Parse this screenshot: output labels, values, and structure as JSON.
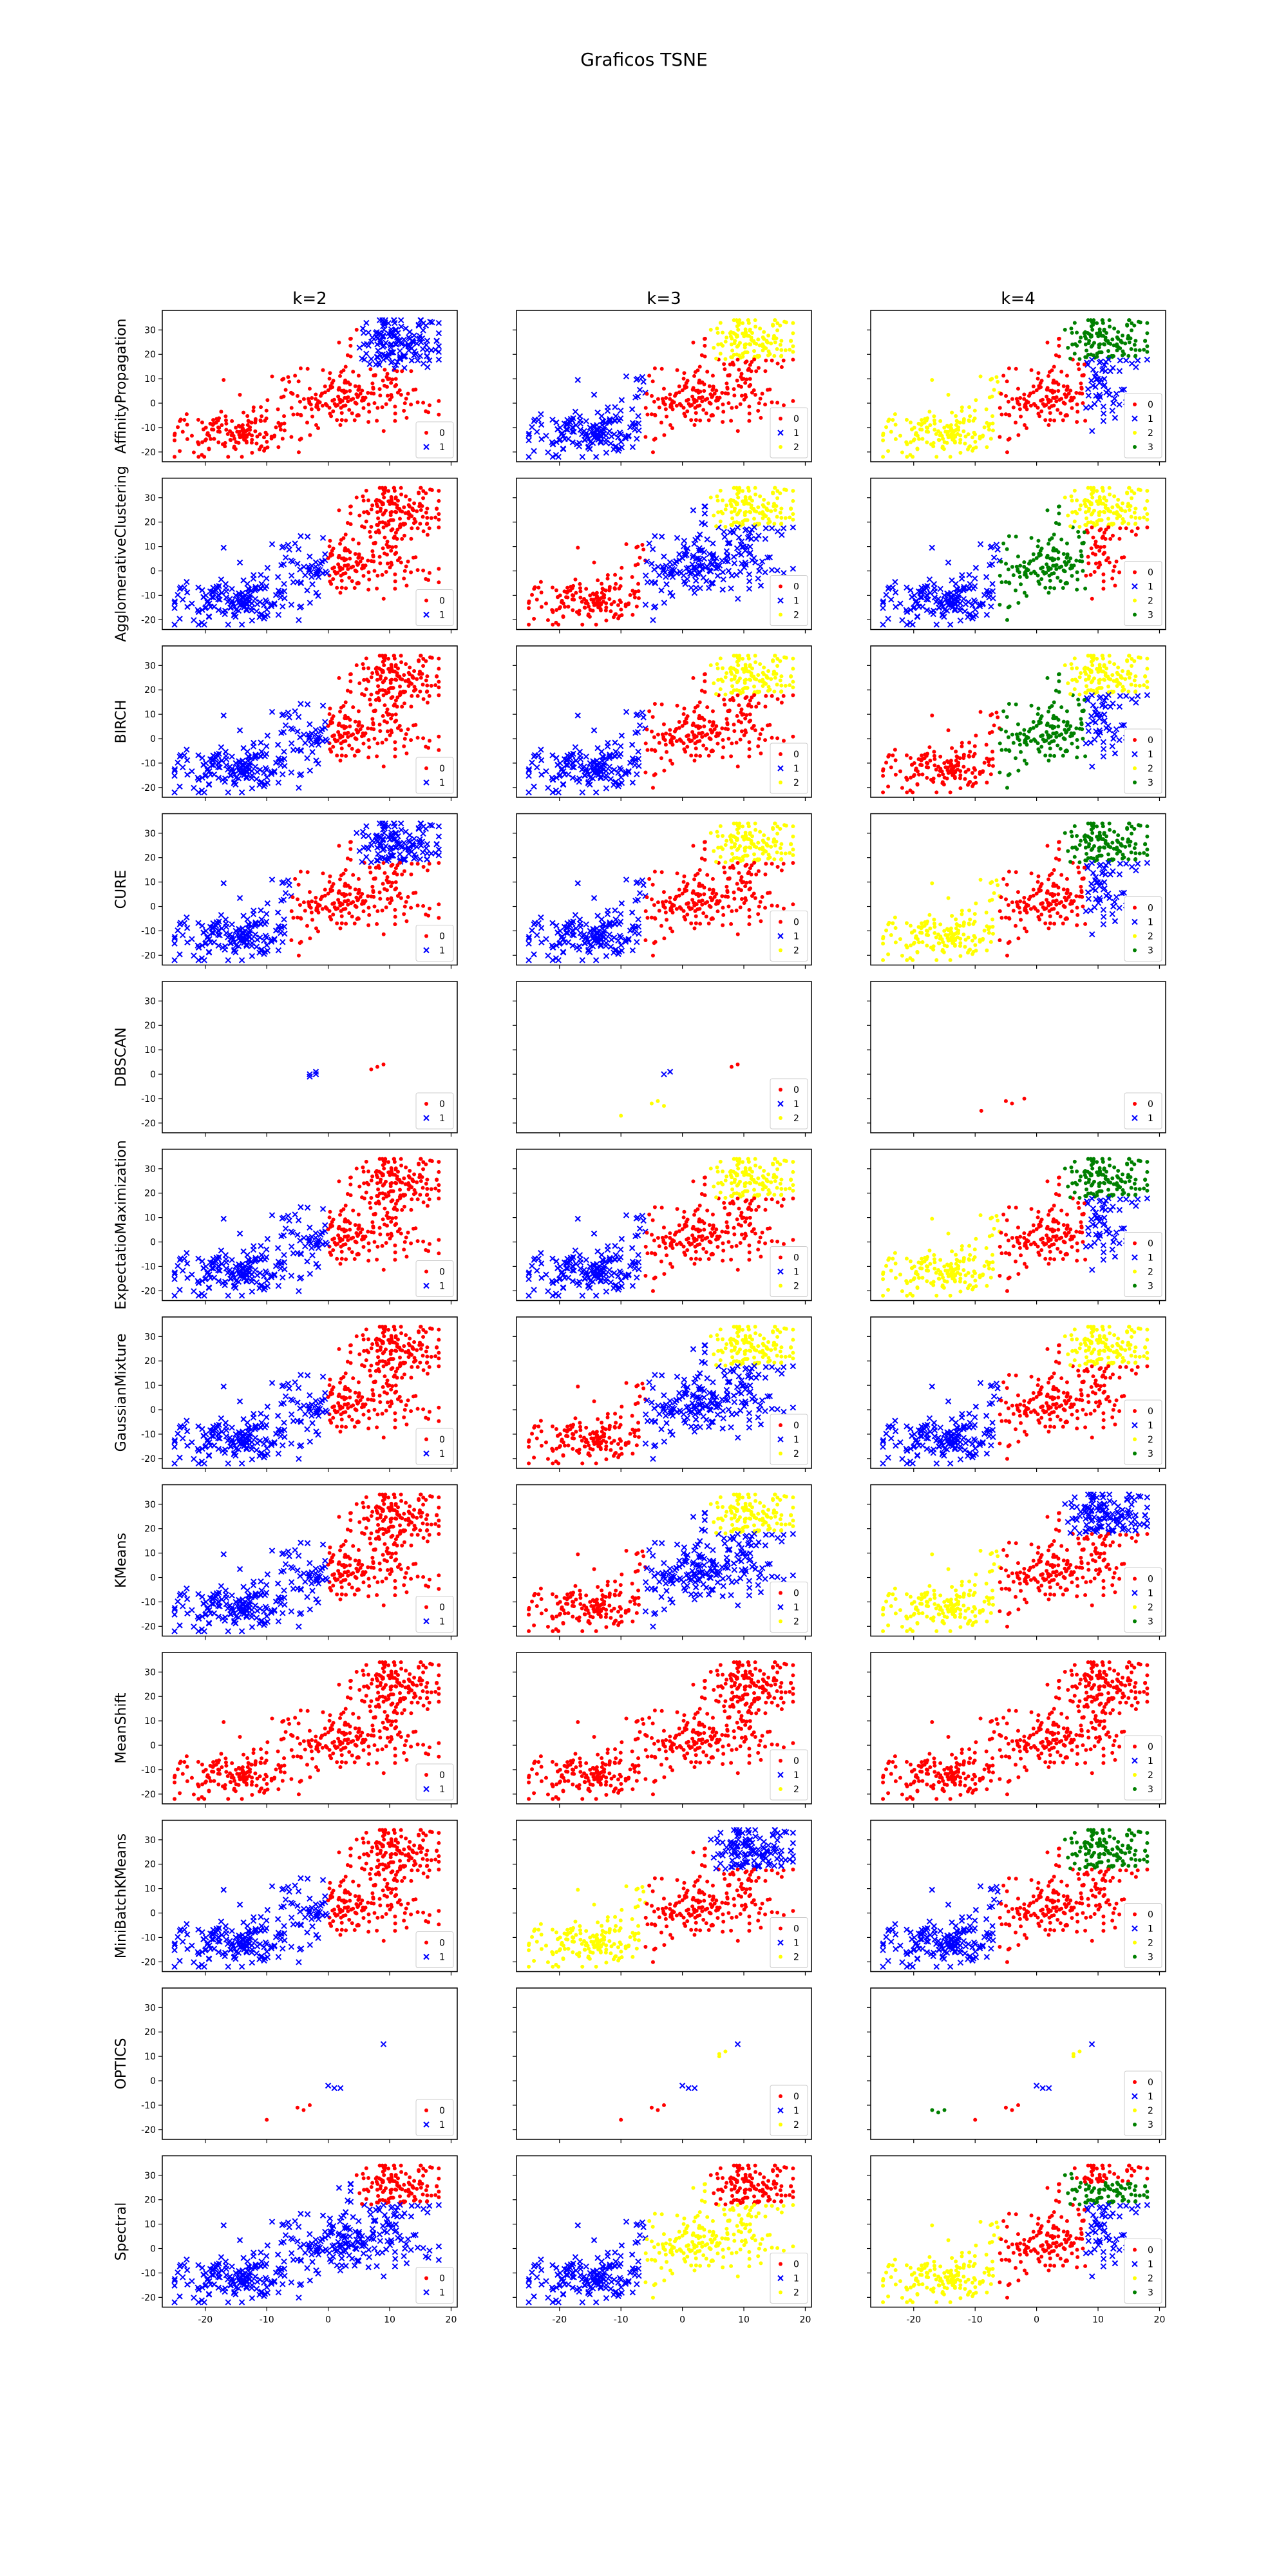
{
  "figure_title": "Graficos TSNE",
  "colors": {
    "0": "#ff0000",
    "1": "#0000ff",
    "2": "#ffff00",
    "3": "#008000"
  },
  "chart_data": {
    "type": "scatter",
    "title": "Graficos TSNE",
    "columns": [
      "k=2",
      "k=3",
      "k=4"
    ],
    "rows": [
      "AffinityPropagation",
      "AgglomerativeClustering",
      "BIRCH",
      "CURE",
      "DBSCAN",
      "ExpectatioMaximization",
      "GaussianMixture",
      "KMeans",
      "MeanShift",
      "MiniBatchKMeans",
      "OPTICS",
      "Spectral"
    ],
    "xlim": [
      -27,
      21
    ],
    "ylim": [
      -24,
      38
    ],
    "x_ticks": [
      -20,
      -10,
      0,
      10,
      20
    ],
    "y_ticks": [
      -20,
      -10,
      0,
      10,
      20,
      30
    ],
    "grid": false,
    "legend_position": "lower right",
    "marker_by_cluster": {
      "0": ".",
      "1": "x",
      "2": ".",
      "3": "."
    },
    "point_cloud_note": "",
    "panels": [
      [
        {
          "legend": [
            "0",
            "1"
          ],
          "clusters": {
            "0": "all_but_top_right",
            "1": "top_right"
          }
        },
        {
          "legend": [
            "0",
            "1",
            "2"
          ],
          "clusters": {
            "0": "mid_right",
            "1": "left",
            "2": "top"
          }
        },
        {
          "legend": [
            "0",
            "1",
            "2",
            "3"
          ],
          "clusters": {
            "0": "mid",
            "1": "right",
            "2": "left",
            "3": "top"
          }
        }
      ],
      [
        {
          "legend": [
            "0",
            "1"
          ],
          "clusters": {
            "0": "right_half",
            "1": "left_half"
          }
        },
        {
          "legend": [
            "0",
            "1",
            "2"
          ],
          "clusters": {
            "0": "left",
            "1": "mid_right",
            "2": "top"
          }
        },
        {
          "legend": [
            "0",
            "1",
            "2",
            "3"
          ],
          "clusters": {
            "0": "right",
            "1": "left",
            "2": "top",
            "3": "mid"
          }
        }
      ],
      [
        {
          "legend": [
            "0",
            "1"
          ],
          "clusters": {
            "0": "right_half",
            "1": "left_half"
          }
        },
        {
          "legend": [
            "0",
            "1",
            "2"
          ],
          "clusters": {
            "0": "mid_right",
            "1": "left",
            "2": "top"
          }
        },
        {
          "legend": [
            "0",
            "1",
            "2",
            "3"
          ],
          "clusters": {
            "0": "left",
            "1": "right",
            "2": "top",
            "3": "mid"
          }
        }
      ],
      [
        {
          "legend": [
            "0",
            "1"
          ],
          "clusters": {
            "0": "mid",
            "1": "left_and_top"
          }
        },
        {
          "legend": [
            "0",
            "1",
            "2"
          ],
          "clusters": {
            "0": "mid_right",
            "1": "left",
            "2": "top"
          }
        },
        {
          "legend": [
            "0",
            "1",
            "2",
            "3"
          ],
          "clusters": {
            "0": "mid",
            "1": "right",
            "2": "left",
            "3": "top"
          }
        }
      ],
      [
        {
          "legend": [
            "0",
            "1"
          ],
          "points": {
            "0": [
              [
                8,
                3
              ],
              [
                9,
                4
              ],
              [
                7,
                2
              ]
            ],
            "1": [
              [
                -3,
                0
              ],
              [
                -2,
                1
              ],
              [
                -3,
                -1
              ],
              [
                -2,
                0
              ]
            ]
          }
        },
        {
          "legend": [
            "0",
            "1",
            "2"
          ],
          "points": {
            "0": [
              [
                8,
                3
              ],
              [
                9,
                4
              ]
            ],
            "1": [
              [
                -3,
                0
              ],
              [
                -2,
                1
              ]
            ],
            "2": [
              [
                -5,
                -12
              ],
              [
                -3,
                -13
              ],
              [
                -10,
                -17
              ],
              [
                -4,
                -11
              ]
            ]
          }
        },
        {
          "legend": [
            "0",
            "1"
          ],
          "points": {
            "0": [
              [
                -5,
                -11
              ],
              [
                -4,
                -12
              ],
              [
                -9,
                -15
              ],
              [
                -2,
                -10
              ]
            ],
            "1": []
          }
        }
      ],
      [
        {
          "legend": [
            "0",
            "1"
          ],
          "clusters": {
            "0": "right_half",
            "1": "left_half"
          }
        },
        {
          "legend": [
            "0",
            "1",
            "2"
          ],
          "clusters": {
            "0": "mid_right",
            "1": "left",
            "2": "top"
          }
        },
        {
          "legend": [
            "0",
            "1",
            "2",
            "3"
          ],
          "clusters": {
            "0": "mid",
            "1": "right",
            "2": "left",
            "3": "top"
          }
        }
      ],
      [
        {
          "legend": [
            "0",
            "1"
          ],
          "clusters": {
            "0": "right_half",
            "1": "left_half"
          }
        },
        {
          "legend": [
            "0",
            "1",
            "2"
          ],
          "clusters": {
            "0": "left",
            "1": "mid_right",
            "2": "top"
          }
        },
        {
          "legend": [
            "0",
            "1",
            "2",
            "3"
          ],
          "clusters": {
            "0": "mid",
            "1": "left",
            "2": "top",
            "3": "top_edge"
          }
        }
      ],
      [
        {
          "legend": [
            "0",
            "1"
          ],
          "clusters": {
            "0": "right_half",
            "1": "left_half"
          }
        },
        {
          "legend": [
            "0",
            "1",
            "2"
          ],
          "clusters": {
            "0": "left",
            "1": "mid_right",
            "2": "top"
          }
        },
        {
          "legend": [
            "0",
            "1",
            "2",
            "3"
          ],
          "clusters": {
            "0": "mid_right",
            "1": "top",
            "2": "left",
            "3": "mid"
          }
        }
      ],
      [
        {
          "legend": [
            "0",
            "1"
          ],
          "clusters": {
            "0": "all"
          }
        },
        {
          "legend": [
            "0",
            "1",
            "2"
          ],
          "clusters": {
            "0": "all"
          }
        },
        {
          "legend": [
            "0",
            "1",
            "2",
            "3"
          ],
          "clusters": {
            "0": "all"
          }
        }
      ],
      [
        {
          "legend": [
            "0",
            "1"
          ],
          "clusters": {
            "0": "right_half",
            "1": "left_half"
          }
        },
        {
          "legend": [
            "0",
            "1",
            "2"
          ],
          "clusters": {
            "0": "mid_right",
            "1": "top",
            "2": "left"
          }
        },
        {
          "legend": [
            "0",
            "1",
            "2",
            "3"
          ],
          "clusters": {
            "0": "mid_right",
            "1": "left",
            "2": "mid",
            "3": "top"
          }
        }
      ],
      [
        {
          "legend": [
            "0",
            "1"
          ],
          "points": {
            "0": [
              [
                -5,
                -11
              ],
              [
                -4,
                -12
              ],
              [
                -10,
                -16
              ],
              [
                -3,
                -10
              ]
            ],
            "1": [
              [
                9,
                15
              ],
              [
                0,
                -2
              ],
              [
                1,
                -3
              ],
              [
                2,
                -3
              ]
            ]
          }
        },
        {
          "legend": [
            "0",
            "1",
            "2"
          ],
          "points": {
            "0": [
              [
                -5,
                -11
              ],
              [
                -4,
                -12
              ],
              [
                -10,
                -16
              ],
              [
                -3,
                -10
              ]
            ],
            "1": [
              [
                9,
                15
              ],
              [
                0,
                -2
              ],
              [
                1,
                -3
              ],
              [
                2,
                -3
              ]
            ],
            "2": [
              [
                6,
                11
              ],
              [
                7,
                12
              ],
              [
                6,
                10
              ]
            ]
          }
        },
        {
          "legend": [
            "0",
            "1",
            "2",
            "3"
          ],
          "points": {
            "0": [
              [
                -5,
                -11
              ],
              [
                -4,
                -12
              ],
              [
                -10,
                -16
              ],
              [
                -3,
                -10
              ]
            ],
            "1": [
              [
                9,
                15
              ],
              [
                0,
                -2
              ],
              [
                1,
                -3
              ],
              [
                2,
                -3
              ]
            ],
            "2": [
              [
                6,
                11
              ],
              [
                7,
                12
              ],
              [
                6,
                10
              ]
            ],
            "3": [
              [
                -17,
                -12
              ],
              [
                -16,
                -13
              ],
              [
                -15,
                -12
              ]
            ]
          }
        }
      ],
      [
        {
          "legend": [
            "0",
            "1"
          ],
          "clusters": {
            "0": "top",
            "1": "all_but_top"
          }
        },
        {
          "legend": [
            "0",
            "1",
            "2"
          ],
          "clusters": {
            "0": "top",
            "1": "left",
            "2": "mid_right"
          }
        },
        {
          "legend": [
            "0",
            "1",
            "2",
            "3"
          ],
          "clusters": {
            "0": "top_edge",
            "1": "right",
            "2": "left",
            "3": "top"
          }
        }
      ]
    ]
  }
}
